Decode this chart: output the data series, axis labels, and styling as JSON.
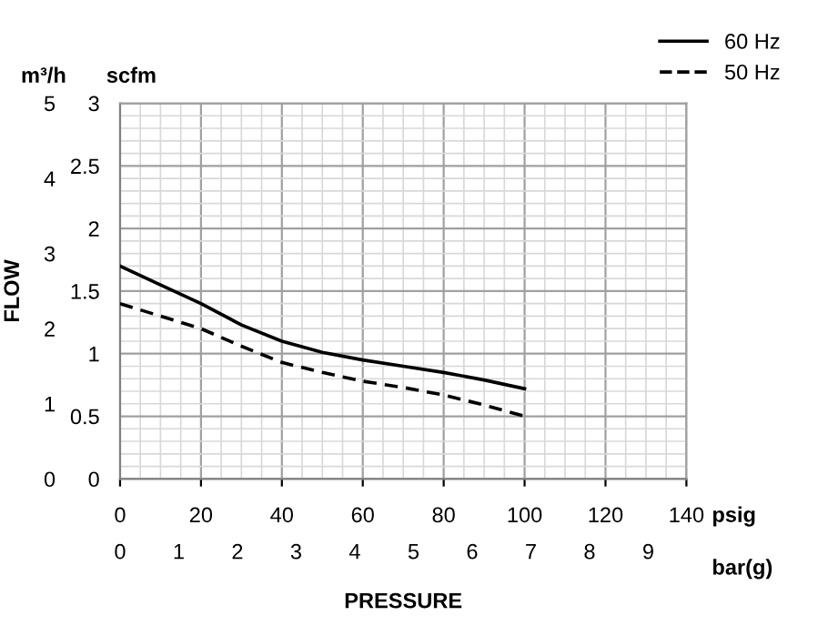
{
  "chart_data": {
    "type": "line",
    "y2label": "FLOW",
    "xlabel": "PRESSURE",
    "annotations": [
      "scfm",
      "m³/h",
      "psig",
      "bar(g)"
    ],
    "x": [
      0,
      10,
      20,
      30,
      40,
      50,
      60,
      70,
      80,
      90,
      100
    ],
    "series": [
      {
        "name": "60 Hz",
        "color": "#000000",
        "line_style": "solid",
        "values": [
          1.7,
          1.55,
          1.4,
          1.23,
          1.1,
          1.01,
          0.95,
          0.9,
          0.85,
          0.79,
          0.72
        ]
      },
      {
        "name": "50 Hz",
        "color": "#000000",
        "line_style": "dashed",
        "values": [
          1.4,
          1.3,
          1.2,
          1.06,
          0.93,
          0.85,
          0.78,
          0.73,
          0.67,
          0.59,
          0.5
        ]
      }
    ],
    "xlim": [
      0,
      140
    ],
    "xticks": [
      0,
      20,
      40,
      60,
      80,
      100,
      120,
      140
    ],
    "ylim": [
      0,
      3
    ],
    "yticks": [
      0,
      0.5,
      1,
      1.5,
      2,
      2.5,
      3
    ],
    "y2lim": [
      0,
      5
    ],
    "y2ticks": [
      0,
      1,
      2,
      3,
      4,
      5
    ],
    "x2lim": [
      0,
      9.65
    ],
    "x2ticks": [
      0,
      1,
      2,
      3,
      4,
      5,
      6,
      7,
      8,
      9
    ],
    "grid": true,
    "legend": "top right",
    "marker": "none"
  }
}
